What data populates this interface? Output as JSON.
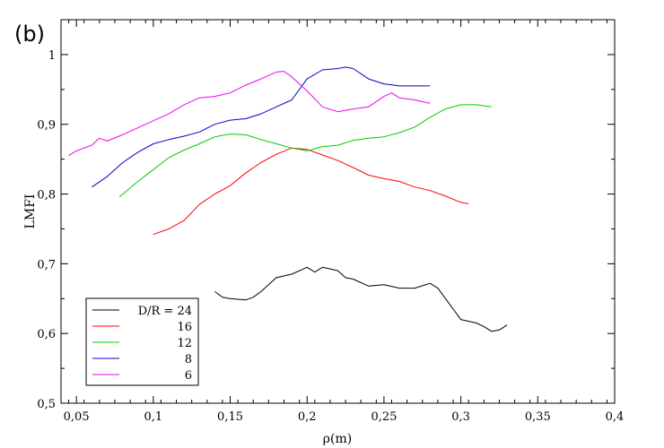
{
  "chart_data": {
    "type": "line",
    "panel_label": "(b)",
    "xlabel": "ρ(m)",
    "ylabel": "LMFI",
    "xlim": [
      0.04,
      0.4
    ],
    "ylim": [
      0.5,
      1.05
    ],
    "x_ticks": [
      0.05,
      0.1,
      0.15,
      0.2,
      0.25,
      0.3,
      0.35,
      0.4
    ],
    "x_tick_labels": [
      "0,05",
      "0,1",
      "0,15",
      "0,2",
      "0,25",
      "0,3",
      "0,35",
      "0,4"
    ],
    "y_ticks": [
      0.5,
      0.6,
      0.7,
      0.8,
      0.9,
      1.0
    ],
    "y_tick_labels": [
      "0,5",
      "0,6",
      "0,7",
      "0,8",
      "0,9",
      "1"
    ],
    "grid": false,
    "legend_position": "bottom-left",
    "series": [
      {
        "name": "D/R = 24",
        "color": "#000000",
        "points": [
          [
            0.14,
            0.66
          ],
          [
            0.145,
            0.652
          ],
          [
            0.15,
            0.65
          ],
          [
            0.16,
            0.648
          ],
          [
            0.165,
            0.652
          ],
          [
            0.17,
            0.66
          ],
          [
            0.18,
            0.68
          ],
          [
            0.19,
            0.685
          ],
          [
            0.2,
            0.695
          ],
          [
            0.205,
            0.688
          ],
          [
            0.21,
            0.695
          ],
          [
            0.22,
            0.69
          ],
          [
            0.225,
            0.68
          ],
          [
            0.23,
            0.678
          ],
          [
            0.24,
            0.668
          ],
          [
            0.25,
            0.67
          ],
          [
            0.26,
            0.665
          ],
          [
            0.27,
            0.665
          ],
          [
            0.28,
            0.672
          ],
          [
            0.285,
            0.665
          ],
          [
            0.29,
            0.65
          ],
          [
            0.3,
            0.62
          ],
          [
            0.31,
            0.615
          ],
          [
            0.315,
            0.61
          ],
          [
            0.32,
            0.603
          ],
          [
            0.325,
            0.605
          ],
          [
            0.33,
            0.612
          ]
        ]
      },
      {
        "name": "16",
        "color": "#ff0000",
        "points": [
          [
            0.1,
            0.742
          ],
          [
            0.11,
            0.75
          ],
          [
            0.12,
            0.762
          ],
          [
            0.13,
            0.785
          ],
          [
            0.14,
            0.8
          ],
          [
            0.15,
            0.812
          ],
          [
            0.16,
            0.83
          ],
          [
            0.17,
            0.845
          ],
          [
            0.18,
            0.857
          ],
          [
            0.19,
            0.866
          ],
          [
            0.2,
            0.864
          ],
          [
            0.21,
            0.856
          ],
          [
            0.22,
            0.848
          ],
          [
            0.23,
            0.838
          ],
          [
            0.24,
            0.827
          ],
          [
            0.25,
            0.822
          ],
          [
            0.26,
            0.818
          ],
          [
            0.27,
            0.81
          ],
          [
            0.28,
            0.805
          ],
          [
            0.29,
            0.797
          ],
          [
            0.3,
            0.788
          ],
          [
            0.305,
            0.786
          ]
        ]
      },
      {
        "name": "12",
        "color": "#00cc00",
        "points": [
          [
            0.078,
            0.796
          ],
          [
            0.09,
            0.818
          ],
          [
            0.1,
            0.835
          ],
          [
            0.11,
            0.852
          ],
          [
            0.12,
            0.863
          ],
          [
            0.13,
            0.872
          ],
          [
            0.14,
            0.882
          ],
          [
            0.15,
            0.886
          ],
          [
            0.16,
            0.885
          ],
          [
            0.17,
            0.878
          ],
          [
            0.18,
            0.872
          ],
          [
            0.19,
            0.866
          ],
          [
            0.2,
            0.862
          ],
          [
            0.21,
            0.868
          ],
          [
            0.22,
            0.87
          ],
          [
            0.23,
            0.877
          ],
          [
            0.24,
            0.88
          ],
          [
            0.25,
            0.882
          ],
          [
            0.26,
            0.888
          ],
          [
            0.27,
            0.896
          ],
          [
            0.28,
            0.91
          ],
          [
            0.29,
            0.922
          ],
          [
            0.3,
            0.928
          ],
          [
            0.31,
            0.928
          ],
          [
            0.32,
            0.925
          ]
        ]
      },
      {
        "name": "8",
        "color": "#0000cc",
        "points": [
          [
            0.06,
            0.81
          ],
          [
            0.07,
            0.825
          ],
          [
            0.08,
            0.845
          ],
          [
            0.09,
            0.86
          ],
          [
            0.1,
            0.872
          ],
          [
            0.11,
            0.878
          ],
          [
            0.12,
            0.883
          ],
          [
            0.13,
            0.889
          ],
          [
            0.14,
            0.9
          ],
          [
            0.15,
            0.906
          ],
          [
            0.16,
            0.908
          ],
          [
            0.17,
            0.915
          ],
          [
            0.18,
            0.925
          ],
          [
            0.19,
            0.935
          ],
          [
            0.2,
            0.965
          ],
          [
            0.21,
            0.978
          ],
          [
            0.22,
            0.98
          ],
          [
            0.225,
            0.982
          ],
          [
            0.23,
            0.98
          ],
          [
            0.24,
            0.965
          ],
          [
            0.25,
            0.958
          ],
          [
            0.26,
            0.955
          ],
          [
            0.27,
            0.955
          ],
          [
            0.28,
            0.955
          ]
        ]
      },
      {
        "name": "6",
        "color": "#ee00ee",
        "points": [
          [
            0.045,
            0.855
          ],
          [
            0.05,
            0.862
          ],
          [
            0.06,
            0.87
          ],
          [
            0.065,
            0.88
          ],
          [
            0.07,
            0.876
          ],
          [
            0.08,
            0.885
          ],
          [
            0.09,
            0.895
          ],
          [
            0.1,
            0.905
          ],
          [
            0.11,
            0.915
          ],
          [
            0.12,
            0.928
          ],
          [
            0.13,
            0.938
          ],
          [
            0.14,
            0.94
          ],
          [
            0.15,
            0.945
          ],
          [
            0.16,
            0.956
          ],
          [
            0.17,
            0.965
          ],
          [
            0.18,
            0.975
          ],
          [
            0.185,
            0.976
          ],
          [
            0.19,
            0.968
          ],
          [
            0.2,
            0.948
          ],
          [
            0.21,
            0.925
          ],
          [
            0.22,
            0.918
          ],
          [
            0.23,
            0.922
          ],
          [
            0.24,
            0.925
          ],
          [
            0.25,
            0.94
          ],
          [
            0.255,
            0.945
          ],
          [
            0.26,
            0.938
          ],
          [
            0.27,
            0.935
          ],
          [
            0.28,
            0.93
          ]
        ]
      }
    ]
  }
}
